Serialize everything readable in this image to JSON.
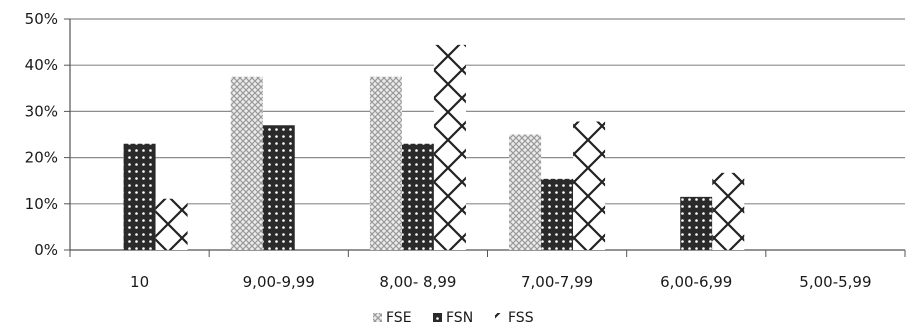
{
  "chart_data": {
    "type": "bar",
    "title": "",
    "xlabel": "",
    "ylabel": "",
    "categories": [
      "10",
      "9,00-9,99",
      "8,00- 8,99",
      "7,00-7,99",
      "6,00-6,99",
      "5,00-5,99"
    ],
    "series": [
      {
        "name": "FSE",
        "values": [
          0,
          37.5,
          37.5,
          25,
          0,
          0
        ],
        "pattern": "crosshatch-light",
        "color": "#d9d9d9"
      },
      {
        "name": "FSN",
        "values": [
          23,
          27,
          23,
          15.4,
          11.5,
          0
        ],
        "pattern": "dots-dark",
        "color": "#222222"
      },
      {
        "name": "FSS",
        "values": [
          11.1,
          0,
          44.4,
          27.8,
          16.7,
          0
        ],
        "pattern": "diamond-lattice",
        "color": "#ffffff"
      }
    ],
    "ylim": [
      0,
      50
    ],
    "yticks": [
      "0%",
      "10%",
      "20%",
      "30%",
      "40%",
      "50%"
    ],
    "grid": true,
    "legend": "bottom"
  }
}
